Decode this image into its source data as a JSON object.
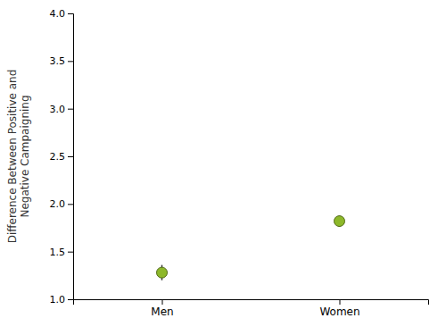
{
  "chart_data": {
    "type": "scatter",
    "categories": [
      "Men",
      "Women"
    ],
    "values": [
      1.28,
      1.82
    ],
    "ci_lower": [
      1.2,
      1.76
    ],
    "ci_upper": [
      1.36,
      1.88
    ],
    "color": "#8db82a",
    "ylabel": "Difference Between Positive and\nNegative Campaigning",
    "ylim": [
      1.0,
      4.0
    ],
    "yticks": [
      {
        "value": 1.0,
        "label": "1.0"
      },
      1.5,
      {
        "value": 2.0,
        "label": "2.0"
      },
      2.5,
      {
        "value": 3.0,
        "label": "3.0"
      },
      3.5,
      {
        "value": 4.0,
        "label": "4.0"
      }
    ],
    "grid": false
  }
}
